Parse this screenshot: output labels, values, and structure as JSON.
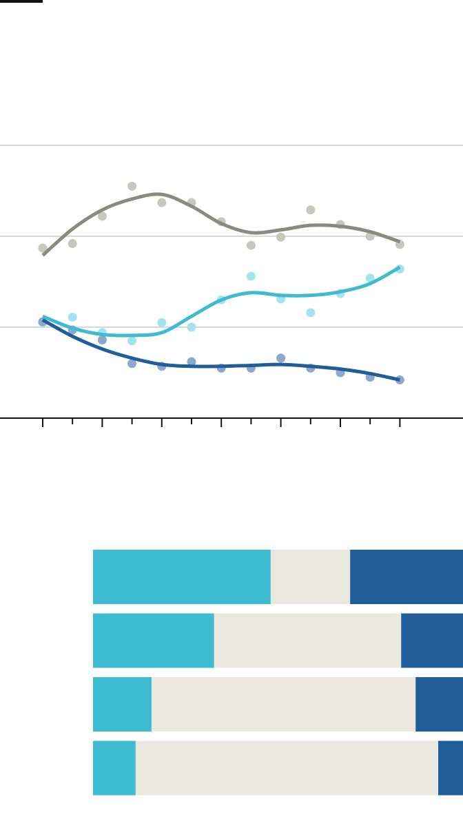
{
  "colors": {
    "grey": "#8b8a80",
    "grey_dots": "#c8c7bd",
    "light_blue": "#3fbbd1",
    "light_blue_dots": "#a5e3ef",
    "dark_blue": "#215d9a",
    "dark_blue_dots": "#8ea8cb",
    "bar_middle": "#ebe8e0",
    "gridline": "#d9d9d9",
    "axis": "#121212"
  },
  "chart_data": [
    {
      "type": "line",
      "x": [
        1,
        2,
        3,
        4,
        5,
        6,
        7,
        8,
        9,
        10,
        11,
        12,
        13
      ],
      "xticks": 13,
      "ylim": [
        0,
        3
      ],
      "gridlines": [
        1,
        2,
        3
      ],
      "series": [
        {
          "color_key": "grey",
          "points": [
            1.87,
            1.92,
            2.22,
            2.55,
            2.37,
            2.37,
            2.16,
            1.9,
            1.99,
            2.29,
            2.13,
            2.0,
            1.91
          ],
          "trend": [
            1.79,
            2.08,
            2.29,
            2.41,
            2.46,
            2.33,
            2.14,
            2.04,
            2.07,
            2.12,
            2.11,
            2.05,
            1.94
          ]
        },
        {
          "color_key": "light_blue",
          "points": [
            1.05,
            1.11,
            0.94,
            0.85,
            1.05,
            1.0,
            1.3,
            1.56,
            1.31,
            1.16,
            1.37,
            1.54,
            1.64
          ],
          "trend": [
            1.12,
            0.99,
            0.92,
            0.91,
            0.94,
            1.12,
            1.3,
            1.38,
            1.35,
            1.35,
            1.39,
            1.48,
            1.66
          ]
        },
        {
          "color_key": "dark_blue",
          "points": [
            1.06,
            0.97,
            0.86,
            0.6,
            0.57,
            0.62,
            0.55,
            0.55,
            0.66,
            0.55,
            0.5,
            0.45,
            0.42
          ],
          "trend": [
            1.08,
            0.9,
            0.76,
            0.66,
            0.59,
            0.57,
            0.57,
            0.58,
            0.59,
            0.57,
            0.54,
            0.49,
            0.42
          ]
        }
      ]
    },
    {
      "type": "bar",
      "stacked": true,
      "orientation": "horizontal",
      "bars": [
        [
          48.0,
          21.5,
          30.5
        ],
        [
          32.7,
          50.6,
          16.7
        ],
        [
          15.8,
          71.4,
          12.8
        ],
        [
          11.5,
          81.8,
          6.7
        ]
      ],
      "segment_color_keys": [
        "light_blue",
        "bar_middle",
        "dark_blue"
      ]
    }
  ]
}
